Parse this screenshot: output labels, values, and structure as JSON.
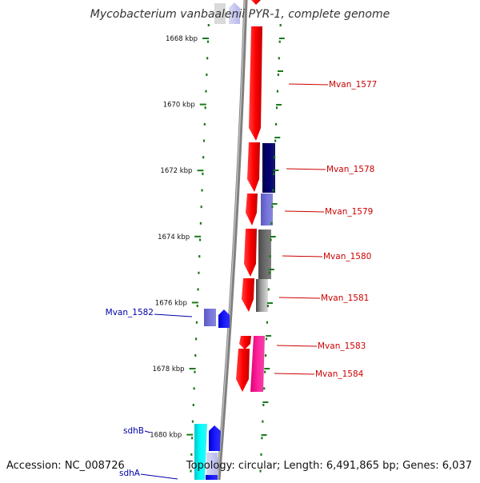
{
  "title": "Mycobacterium vanbaalenii PYR-1, complete genome",
  "footer": {
    "accession": "Accession: NC_008726",
    "topology": "Topology: circular; Length: 6,491,865 bp; Genes: 6,037"
  },
  "ticks": [
    {
      "label": "1668 kbp",
      "pos": 1668
    },
    {
      "label": "1670 kbp",
      "pos": 1670
    },
    {
      "label": "1672 kbp",
      "pos": 1672
    },
    {
      "label": "1674 kbp",
      "pos": 1674
    },
    {
      "label": "1676 kbp",
      "pos": 1676
    },
    {
      "label": "1678 kbp",
      "pos": 1678
    },
    {
      "label": "1680 kbp",
      "pos": 1680
    }
  ],
  "gene_labels": {
    "right": [
      {
        "name": "Mvan_1577",
        "color": "#cc0000"
      },
      {
        "name": "Mvan_1578",
        "color": "#cc0000"
      },
      {
        "name": "Mvan_1579",
        "color": "#cc0000"
      },
      {
        "name": "Mvan_1580",
        "color": "#cc0000"
      },
      {
        "name": "Mvan_1581",
        "color": "#cc0000"
      },
      {
        "name": "Mvan_1583",
        "color": "#cc0000"
      },
      {
        "name": "Mvan_1584",
        "color": "#cc0000"
      }
    ],
    "left": [
      {
        "name": "Mvan_1582",
        "color": "#0000aa"
      },
      {
        "name": "sdhB",
        "color": "#0000aa"
      },
      {
        "name": "sdhA",
        "color": "#0000aa"
      }
    ]
  },
  "colors": {
    "backbone": "#8a8a8a",
    "tick": "#1a7a1a",
    "forward": "#ff0000",
    "reverse_blue": "#1010dd",
    "navy": "#000066",
    "slate": "#6a68cc",
    "gray": "#606060",
    "magenta": "#ee1188",
    "cyan": "#00e5e5"
  }
}
